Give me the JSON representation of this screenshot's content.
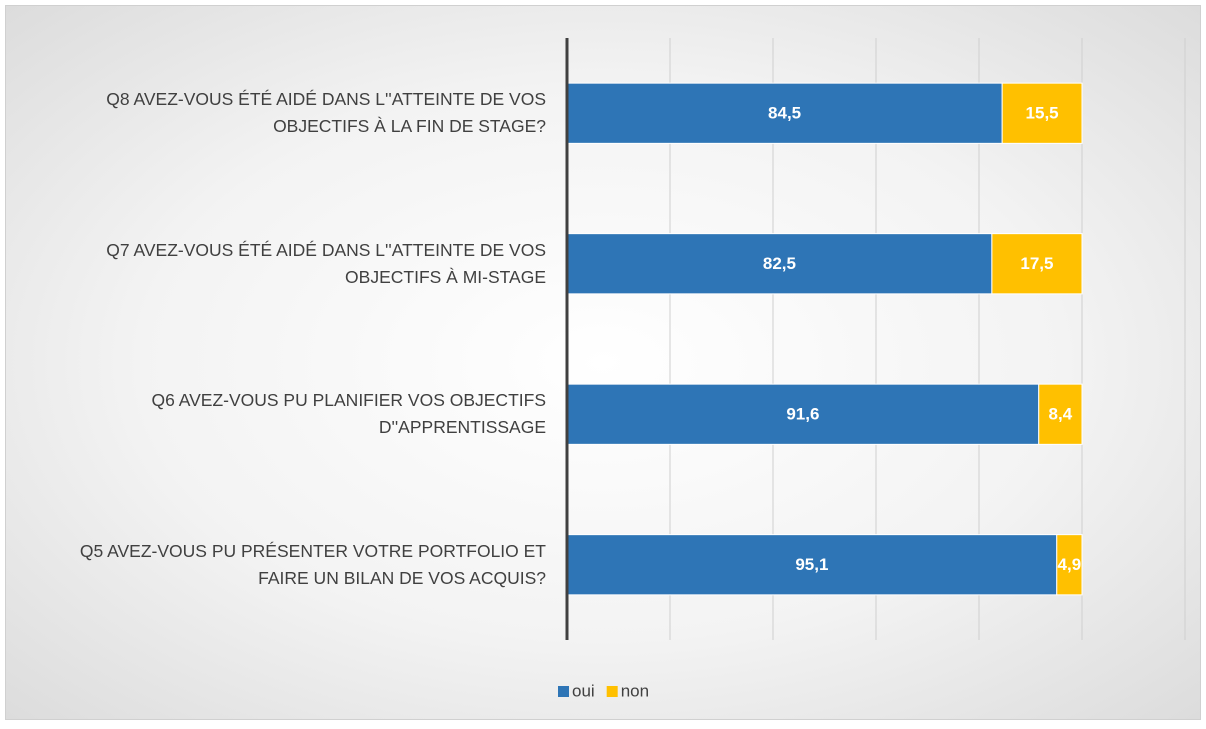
{
  "chart_data": {
    "type": "stacked_barh",
    "categories": [
      "Q8 AVEZ-VOUS ÉTÉ AIDÉ DANS L''ATTEINTE  DE VOS\nOBJECTIFS À LA FIN DE STAGE?",
      "Q7 AVEZ-VOUS ÉTÉ AIDÉ DANS L''ATTEINTE DE VOS\nOBJECTIFS À MI-STAGE",
      "Q6 AVEZ-VOUS PU PLANIFIER VOS OBJECTIFS\nD''APPRENTISSAGE",
      "Q5 AVEZ-VOUS PU PRÉSENTER VOTRE  PORTFOLIO ET\nFAIRE UN BILAN DE VOS ACQUIS?"
    ],
    "series": [
      {
        "name": "oui",
        "color": "#2e75b6",
        "values": [
          84.5,
          82.5,
          91.6,
          95.1
        ],
        "value_labels": [
          "84,5",
          "82,5",
          "91,6",
          "95,1"
        ]
      },
      {
        "name": "non",
        "color": "#ffc000",
        "values": [
          15.5,
          17.5,
          8.4,
          4.9
        ],
        "value_labels": [
          "15,5",
          "17,5",
          "8,4",
          "4,9"
        ]
      }
    ],
    "xlim": [
      0,
      120
    ],
    "xticks": [
      0,
      20,
      40,
      60,
      80,
      100,
      120
    ],
    "show_tick_labels": false,
    "grid": true,
    "legend": "bottom"
  }
}
